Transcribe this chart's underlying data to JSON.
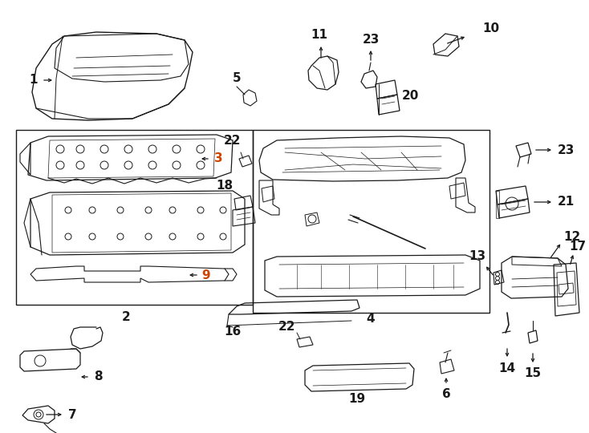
{
  "background_color": "#ffffff",
  "line_color": "#1a1a1a",
  "highlight_color": "#cc4400",
  "fig_width": 7.34,
  "fig_height": 5.4,
  "dpi": 100
}
